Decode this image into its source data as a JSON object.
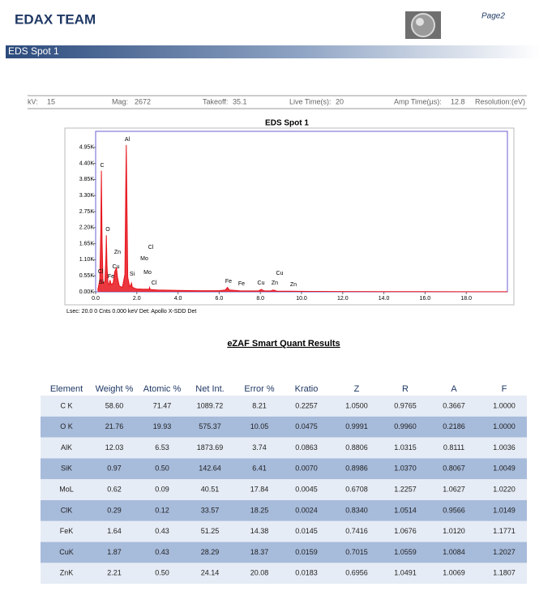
{
  "header": {
    "title": "EDAX TEAM",
    "page": "Page2",
    "banner": "EDS Spot 1"
  },
  "info": [
    "kV:",
    "15",
    "Mag:",
    "2672",
    "Takeoff:",
    "35.1",
    "Live Time(s):",
    "20",
    "Amp Time(µs):",
    "12.8",
    "Resolution:(eV)"
  ],
  "chart_data": {
    "type": "area",
    "title": "EDS Spot 1",
    "footer": "Lsec: 20.0 0 Cnts 0.000 keV Det: Apollo X-SDD Det",
    "color": "#e8141c",
    "x": [
      0.1,
      0.2,
      0.25,
      0.28,
      0.31,
      0.36,
      0.45,
      0.5,
      0.52,
      0.55,
      0.6,
      0.65,
      0.7,
      0.75,
      0.85,
      0.93,
      0.97,
      1.01,
      1.06,
      1.15,
      1.3,
      1.42,
      1.46,
      1.49,
      1.52,
      1.56,
      1.65,
      1.7,
      1.74,
      1.78,
      1.9,
      2.0,
      2.3,
      2.6,
      2.62,
      2.65,
      3.0,
      4.0,
      5.0,
      6.0,
      6.3,
      6.4,
      6.5,
      7.0,
      7.9,
      8.04,
      8.2,
      8.5,
      8.63,
      8.8,
      9.5,
      10.5,
      12,
      14,
      16,
      18,
      20
    ],
    "values": [
      50,
      400,
      2000,
      4150,
      1800,
      300,
      350,
      1200,
      1935,
      900,
      300,
      250,
      400,
      250,
      300,
      700,
      750,
      830,
      500,
      200,
      150,
      600,
      3500,
      5030,
      3000,
      500,
      180,
      220,
      300,
      160,
      120,
      100,
      90,
      90,
      150,
      80,
      60,
      50,
      40,
      40,
      60,
      150,
      60,
      35,
      30,
      80,
      30,
      30,
      60,
      25,
      20,
      15,
      10,
      8,
      5,
      3,
      2
    ],
    "xlim": [
      0,
      20
    ],
    "xticks": [
      {
        "value": 0,
        "label": "0.0"
      },
      {
        "value": 2,
        "label": "2.0"
      },
      {
        "value": 4,
        "label": "4.0"
      },
      {
        "value": 6,
        "label": "6.0"
      },
      {
        "value": 8,
        "label": "8.0"
      },
      {
        "value": 10,
        "label": "10.0"
      },
      {
        "value": 12,
        "label": "12.0"
      },
      {
        "value": 14,
        "label": "14.0"
      },
      {
        "value": 16,
        "label": "16.0"
      },
      {
        "value": 18,
        "label": "18.0"
      }
    ],
    "ylim": [
      0,
      5500
    ],
    "yticks": [
      {
        "value": 0,
        "label": "0.00K"
      },
      {
        "value": 550,
        "label": "0.55K"
      },
      {
        "value": 1100,
        "label": "1.10K"
      },
      {
        "value": 1650,
        "label": "1.65K"
      },
      {
        "value": 2200,
        "label": "2.20K"
      },
      {
        "value": 2750,
        "label": "2.75K"
      },
      {
        "value": 3300,
        "label": "3.30K"
      },
      {
        "value": 3850,
        "label": "3.85K"
      },
      {
        "value": 4400,
        "label": "4.40K"
      },
      {
        "value": 4950,
        "label": "4.95K"
      }
    ],
    "annotations": [
      "Al",
      "C",
      "O",
      "Zn",
      "Cl",
      "Mo",
      "Cu",
      "Cl",
      "Fe",
      "Si",
      "Mo",
      "Si",
      "Cl",
      "Fe",
      "Fe",
      "Cu",
      "Zn",
      "Cu",
      "Zn"
    ]
  },
  "section_title": "eZAF Smart Quant Results",
  "table": {
    "columns": [
      "Element",
      "Weight %",
      "Atomic %",
      "Net Int.",
      "Error %",
      "Kratio",
      "Z",
      "R",
      "A",
      "F"
    ],
    "rows": [
      [
        "C K",
        "58.60",
        "71.47",
        "1089.72",
        "8.21",
        "0.2257",
        "1.0500",
        "0.9765",
        "0.3667",
        "1.0000"
      ],
      [
        "O K",
        "21.76",
        "19.93",
        "575.37",
        "10.05",
        "0.0475",
        "0.9991",
        "0.9960",
        "0.2186",
        "1.0000"
      ],
      [
        "AlK",
        "12.03",
        "6.53",
        "1873.69",
        "3.74",
        "0.0863",
        "0.8806",
        "1.0315",
        "0.8111",
        "1.0036"
      ],
      [
        "SiK",
        "0.97",
        "0.50",
        "142.64",
        "6.41",
        "0.0070",
        "0.8986",
        "1.0370",
        "0.8067",
        "1.0049"
      ],
      [
        "MoL",
        "0.62",
        "0.09",
        "40.51",
        "17.84",
        "0.0045",
        "0.6708",
        "1.2257",
        "1.0627",
        "1.0220"
      ],
      [
        "ClK",
        "0.29",
        "0.12",
        "33.57",
        "18.25",
        "0.0024",
        "0.8340",
        "1.0514",
        "0.9566",
        "1.0149"
      ],
      [
        "FeK",
        "1.64",
        "0.43",
        "51.25",
        "14.38",
        "0.0145",
        "0.7416",
        "1.0676",
        "1.0120",
        "1.1771"
      ],
      [
        "CuK",
        "1.87",
        "0.43",
        "28.29",
        "18.37",
        "0.0159",
        "0.7015",
        "1.0559",
        "1.0084",
        "1.2027"
      ],
      [
        "ZnK",
        "2.21",
        "0.50",
        "24.14",
        "20.08",
        "0.0183",
        "0.6956",
        "1.0491",
        "1.0069",
        "1.1807"
      ]
    ]
  }
}
